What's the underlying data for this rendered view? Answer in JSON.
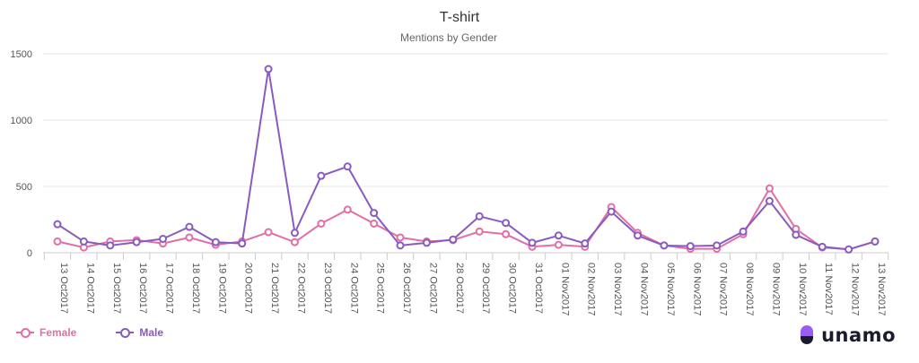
{
  "colors": {
    "female": "#e06fa6",
    "male": "#8a5bbf",
    "grid": "#e6e6e6",
    "axis_text": "#555555",
    "title_text": "#333333",
    "logo_top": "#9b5cf0",
    "logo_bottom": "#1b1b2f"
  },
  "chart_data": {
    "type": "line",
    "title": "T-shirt",
    "subtitle": "Mentions by Gender",
    "xlabel": "",
    "ylabel": "",
    "ylim": [
      0,
      1500
    ],
    "yticks": [
      "0",
      "500",
      "1000",
      "1500"
    ],
    "grid": true,
    "legend_position": "bottom-left",
    "categories": [
      "13 Oct2017",
      "14 Oct2017",
      "15 Oct2017",
      "16 Oct2017",
      "17 Oct2017",
      "18 Oct2017",
      "19 Oct2017",
      "20 Oct2017",
      "21 Oct2017",
      "22 Oct2017",
      "23 Oct2017",
      "24 Oct2017",
      "25 Oct2017",
      "26 Oct2017",
      "27 Oct2017",
      "28 Oct2017",
      "29 Oct2017",
      "30 Oct2017",
      "31 Oct2017",
      "01 Nov2017",
      "02 Nov2017",
      "03 Nov2017",
      "04 Nov2017",
      "05 Nov2017",
      "06 Nov2017",
      "07 Nov2017",
      "08 Nov2017",
      "09 Nov2017",
      "10 Nov2017",
      "11 Nov2017",
      "12 Nov2017",
      "13 Nov2017"
    ],
    "series": [
      {
        "name": "Female",
        "color": "#e06fa6",
        "values": [
          85,
          40,
          85,
          95,
          70,
          115,
          60,
          85,
          155,
          80,
          220,
          325,
          220,
          115,
          85,
          95,
          160,
          140,
          45,
          60,
          45,
          345,
          150,
          55,
          30,
          30,
          140,
          485,
          180,
          40,
          25,
          85
        ]
      },
      {
        "name": "Male",
        "color": "#8a5bbf",
        "values": [
          215,
          85,
          55,
          80,
          105,
          195,
          80,
          70,
          1385,
          150,
          580,
          650,
          300,
          55,
          75,
          100,
          275,
          225,
          75,
          130,
          70,
          310,
          130,
          55,
          50,
          55,
          160,
          390,
          135,
          45,
          25,
          85
        ]
      }
    ]
  },
  "logo": {
    "text": "unamo"
  }
}
